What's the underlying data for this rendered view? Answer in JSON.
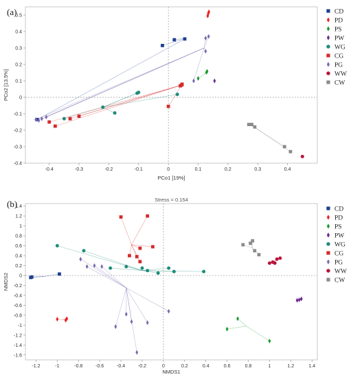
{
  "groups": [
    {
      "name": "CD",
      "color": "#1f3f8f",
      "marker": "square"
    },
    {
      "name": "PD",
      "color": "#e8231f",
      "marker": "diamond"
    },
    {
      "name": "PS",
      "color": "#1a9a2a",
      "marker": "diamond"
    },
    {
      "name": "PW",
      "color": "#6a2a8c",
      "marker": "diamond"
    },
    {
      "name": "WG",
      "color": "#1f8c7a",
      "marker": "circle"
    },
    {
      "name": "CG",
      "color": "#d42a2a",
      "marker": "square"
    },
    {
      "name": "PG",
      "color": "#7a6ab0",
      "marker": "diamond"
    },
    {
      "name": "WW",
      "color": "#b8143c",
      "marker": "circle"
    },
    {
      "name": "CW",
      "color": "#8a8a8a",
      "marker": "square"
    }
  ],
  "chart_data": [
    {
      "type": "scatter",
      "panel_label": "(a)",
      "title": "",
      "xlabel": "PCo1 [19%]",
      "ylabel": "PCo2 [13.5%]",
      "xlim": [
        -0.48,
        0.5
      ],
      "ylim": [
        -0.4,
        0.55
      ],
      "xticks": [
        -0.4,
        -0.3,
        -0.2,
        -0.1,
        0,
        0.1,
        0.2,
        0.3,
        0.4
      ],
      "yticks": [
        -0.4,
        -0.3,
        -0.2,
        -0.1,
        0,
        0.1,
        0.2,
        0.3,
        0.4,
        0.5
      ],
      "zero_lines": true,
      "legend_position": "right",
      "series": [
        {
          "name": "CD",
          "centroid": [
            0.06,
            0.36
          ],
          "points": [
            [
              -0.44,
              -0.135
            ],
            [
              -0.02,
              0.315
            ],
            [
              0.02,
              0.35
            ],
            [
              0.055,
              0.355
            ]
          ]
        },
        {
          "name": "PD",
          "centroid": [
            0.134,
            0.505
          ],
          "points": [
            [
              0.132,
              0.495
            ],
            [
              0.134,
              0.51
            ],
            [
              0.136,
              0.52
            ]
          ]
        },
        {
          "name": "PS",
          "centroid": [
            0.12,
            0.14
          ],
          "points": [
            [
              0.1,
              0.115
            ],
            [
              0.128,
              0.152
            ],
            [
              0.13,
              0.158
            ]
          ]
        },
        {
          "name": "PW",
          "centroid": [
            0.155,
            0.1
          ],
          "points": [
            [
              0.155,
              0.1
            ]
          ]
        },
        {
          "name": "WG",
          "centroid": [
            -0.22,
            -0.06
          ],
          "points": [
            [
              -0.35,
              -0.13
            ],
            [
              -0.22,
              -0.06
            ],
            [
              -0.18,
              -0.095
            ],
            [
              -0.105,
              0.025
            ],
            [
              -0.1,
              0.03
            ],
            [
              0.03,
              0.018
            ]
          ]
        },
        {
          "name": "CG",
          "centroid": [
            0.045,
            0.075
          ],
          "points": [
            [
              -0.4,
              -0.15
            ],
            [
              -0.38,
              -0.175
            ],
            [
              -0.33,
              -0.13
            ],
            [
              -0.3,
              -0.115
            ],
            [
              0.0,
              -0.055
            ],
            [
              0.04,
              0.07
            ],
            [
              0.045,
              0.075
            ],
            [
              0.046,
              0.08
            ]
          ]
        },
        {
          "name": "PG",
          "centroid": [
            0.12,
            0.3
          ],
          "points": [
            [
              -0.445,
              -0.135
            ],
            [
              -0.435,
              -0.14
            ],
            [
              -0.425,
              -0.13
            ],
            [
              -0.41,
              -0.12
            ],
            [
              0.085,
              0.1
            ],
            [
              0.125,
              0.28
            ],
            [
              0.125,
              0.36
            ],
            [
              0.135,
              0.37
            ]
          ]
        },
        {
          "name": "WW",
          "centroid": [
            0.45,
            -0.36
          ],
          "points": [
            [
              0.45,
              -0.36
            ]
          ]
        },
        {
          "name": "CW",
          "centroid": [
            0.275,
            -0.165
          ],
          "points": [
            [
              0.27,
              -0.165
            ],
            [
              0.28,
              -0.165
            ],
            [
              0.29,
              -0.18
            ],
            [
              0.39,
              -0.3
            ],
            [
              0.41,
              -0.33
            ]
          ]
        }
      ]
    },
    {
      "type": "scatter",
      "panel_label": "(b)",
      "title": "",
      "annotation": "Stress = 0.154",
      "xlabel": "NMDS1",
      "ylabel": "NMDS2",
      "xlim": [
        -1.3,
        1.45
      ],
      "ylim": [
        -1.7,
        1.45
      ],
      "xticks": [
        -1.2,
        -1,
        -0.8,
        -0.6,
        -0.4,
        -0.2,
        0,
        0.2,
        0.4,
        0.6,
        0.8,
        1,
        1.2,
        1.4
      ],
      "yticks": [
        -1.6,
        -1.4,
        -1.2,
        -1,
        -0.8,
        -0.6,
        -0.4,
        -0.2,
        0,
        0.2,
        0.4,
        0.6,
        0.8,
        1,
        1.2,
        1.4
      ],
      "zero_lines": true,
      "legend_position": "right",
      "series": [
        {
          "name": "CD",
          "centroid": [
            -1.12,
            -0.02
          ],
          "points": [
            [
              -1.25,
              -0.04
            ],
            [
              -1.24,
              -0.03
            ],
            [
              -0.98,
              0.03
            ]
          ]
        },
        {
          "name": "PD",
          "centroid": [
            -0.95,
            -0.89
          ],
          "points": [
            [
              -1.0,
              -0.88
            ],
            [
              -0.92,
              -0.9
            ],
            [
              -0.91,
              -0.87
            ]
          ]
        },
        {
          "name": "PS",
          "centroid": [
            0.78,
            -1.02
          ],
          "points": [
            [
              0.6,
              -1.08
            ],
            [
              0.7,
              -0.87
            ],
            [
              1.0,
              -1.32
            ]
          ]
        },
        {
          "name": "PW",
          "centroid": [
            1.28,
            -0.48
          ],
          "points": [
            [
              1.26,
              -0.5
            ],
            [
              1.28,
              -0.49
            ],
            [
              1.3,
              -0.47
            ]
          ]
        },
        {
          "name": "WG",
          "centroid": [
            -0.2,
            0.1
          ],
          "points": [
            [
              -1.0,
              0.6
            ],
            [
              -0.75,
              0.5
            ],
            [
              -0.5,
              0.15
            ],
            [
              -0.35,
              0.18
            ],
            [
              -0.2,
              0.15
            ],
            [
              -0.15,
              0.1
            ],
            [
              -0.05,
              0.05
            ],
            [
              0.05,
              0.15
            ],
            [
              0.1,
              0.08
            ],
            [
              0.38,
              0.08
            ]
          ]
        },
        {
          "name": "CG",
          "centroid": [
            -0.3,
            0.62
          ],
          "points": [
            [
              -0.4,
              1.18
            ],
            [
              -0.32,
              0.4
            ],
            [
              -0.25,
              0.38
            ],
            [
              -0.22,
              0.28
            ],
            [
              -0.22,
              0.55
            ],
            [
              -0.15,
              1.2
            ],
            [
              -0.1,
              0.58
            ]
          ]
        },
        {
          "name": "PG",
          "centroid": [
            -0.35,
            -0.25
          ],
          "points": [
            [
              -0.78,
              0.33
            ],
            [
              -0.72,
              0.18
            ],
            [
              -0.65,
              0.2
            ],
            [
              -0.58,
              0.18
            ],
            [
              -0.45,
              -1.03
            ],
            [
              -0.35,
              -0.78
            ],
            [
              -0.3,
              -0.93
            ],
            [
              -0.25,
              -1.55
            ],
            [
              -0.15,
              -0.95
            ],
            [
              0.05,
              -0.72
            ]
          ]
        },
        {
          "name": "WW",
          "centroid": [
            1.05,
            0.3
          ],
          "points": [
            [
              1.0,
              0.25
            ],
            [
              1.03,
              0.27
            ],
            [
              1.05,
              0.25
            ],
            [
              1.07,
              0.33
            ],
            [
              1.1,
              0.35
            ]
          ]
        },
        {
          "name": "CW",
          "centroid": [
            0.84,
            0.55
          ],
          "points": [
            [
              0.75,
              0.62
            ],
            [
              0.82,
              0.65
            ],
            [
              0.84,
              0.7
            ],
            [
              0.86,
              0.5
            ],
            [
              0.9,
              0.42
            ]
          ]
        }
      ]
    }
  ]
}
